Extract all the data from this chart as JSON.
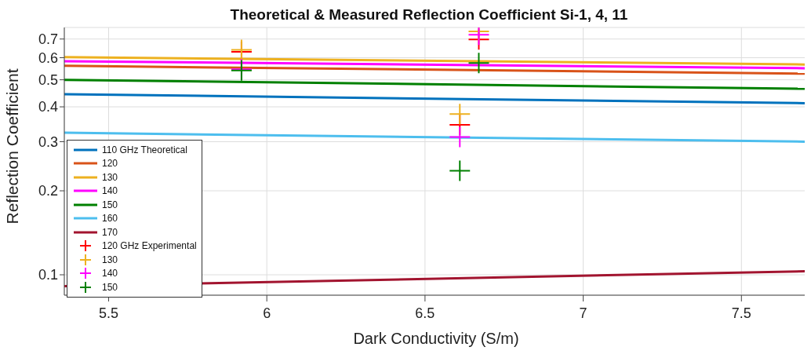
{
  "chart_data": {
    "type": "line",
    "title": "Theoretical & Measured Reflection Coefficient Si-1, 4, 11",
    "xlabel": "Dark Conductivity (S/m)",
    "ylabel": "Reflection Coefficient",
    "log": true,
    "grid": true,
    "legend": "bottom left",
    "xlim": [
      5.36,
      7.71
    ],
    "xticks": [
      5.5,
      6,
      6.5,
      7,
      7.5
    ],
    "ylim": [
      0.0845,
      0.77
    ],
    "yticks": [
      0.1,
      0.2,
      0.3,
      0.4,
      0.5,
      0.6,
      0.7
    ],
    "series": [
      {
        "name": "110 GHz Theoretical",
        "marker": "none",
        "color": "#0072bd",
        "x": [
          5.36,
          7.71
        ],
        "values": [
          0.444,
          0.412
        ]
      },
      {
        "name": "120",
        "marker": "none",
        "color": "#d95319",
        "x": [
          5.36,
          7.71
        ],
        "values": [
          0.561,
          0.526
        ]
      },
      {
        "name": "130",
        "marker": "none",
        "color": "#edb120",
        "x": [
          5.36,
          7.71
        ],
        "values": [
          0.603,
          0.567
        ]
      },
      {
        "name": "140",
        "marker": "none",
        "color": "#ff00ff",
        "x": [
          5.36,
          7.71
        ],
        "values": [
          0.583,
          0.55
        ]
      },
      {
        "name": "150",
        "marker": "none",
        "color": "#008000",
        "x": [
          5.36,
          7.71
        ],
        "values": [
          0.5,
          0.464
        ]
      },
      {
        "name": "160",
        "marker": "none",
        "color": "#4dbeee",
        "x": [
          5.36,
          7.71
        ],
        "values": [
          0.323,
          0.3
        ]
      },
      {
        "name": "170",
        "marker": "none",
        "color": "#a2142f",
        "x": [
          5.36,
          7.71
        ],
        "values": [
          0.091,
          0.103
        ]
      },
      {
        "name": "120 GHz Experimental",
        "type": "scatter",
        "marker": "cross",
        "color": "#ff0000",
        "x": [
          5.92,
          6.61,
          6.67
        ],
        "values": [
          0.63,
          0.345,
          0.697
        ]
      },
      {
        "name": "130",
        "type": "scatter",
        "marker": "cross",
        "color": "#edb120",
        "x": [
          5.92,
          6.61,
          6.67
        ],
        "values": [
          0.64,
          0.377,
          0.746
        ]
      },
      {
        "name": "140",
        "type": "scatter",
        "marker": "cross",
        "color": "#ff00ff",
        "x": [
          5.92,
          6.61,
          6.67
        ],
        "values": [
          0.545,
          0.312,
          0.725
        ]
      },
      {
        "name": "150",
        "type": "scatter",
        "marker": "cross",
        "color": "#008000",
        "x": [
          5.92,
          6.61,
          6.67
        ],
        "values": [
          0.54,
          0.236,
          0.574
        ]
      }
    ]
  }
}
